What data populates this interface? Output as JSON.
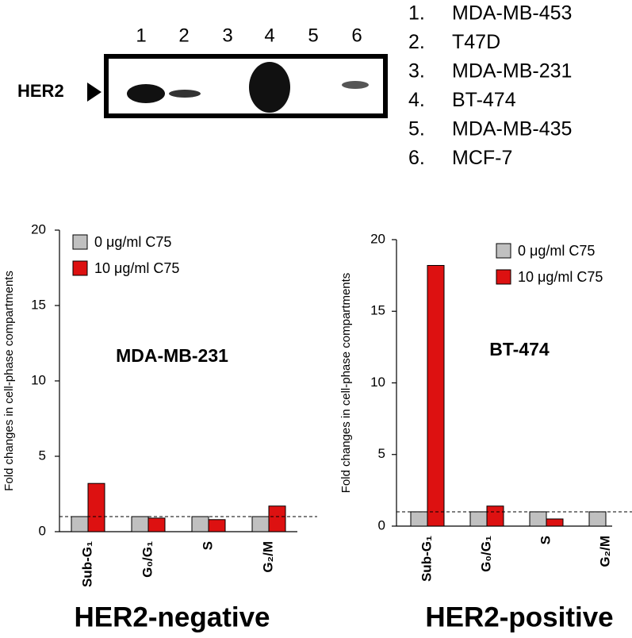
{
  "blot": {
    "lanes": [
      "1",
      "2",
      "3",
      "4",
      "5",
      "6"
    ],
    "marker": "HER2"
  },
  "cell_lines": [
    {
      "number": "1.",
      "name": "MDA-MB-453"
    },
    {
      "number": "2.",
      "name": "T47D"
    },
    {
      "number": "3.",
      "name": "MDA-MB-231"
    },
    {
      "number": "4.",
      "name": "BT-474"
    },
    {
      "number": "5.",
      "name": "MDA-MB-435"
    },
    {
      "number": "6.",
      "name": "MCF-7"
    }
  ],
  "captions": [
    {
      "text": "HER2-negative",
      "color": "#000000"
    },
    {
      "text": "HER2-positive",
      "color": "#e00000"
    }
  ],
  "chart_data": [
    {
      "type": "bar",
      "title": "MDA-MB-231",
      "y_label": "Fold changes in cell-phase compartments",
      "categories": [
        "Sub-G₁",
        "G₀/G₁",
        "S",
        "G₂/M"
      ],
      "series": [
        {
          "name": "0 μg/ml C75",
          "color": "#c0c0c0",
          "values": [
            1,
            1,
            1,
            1
          ]
        },
        {
          "name": "10 μg/ml C75",
          "color": "#dd1111",
          "values": [
            3.2,
            0.9,
            0.8,
            1.7
          ]
        }
      ],
      "reference_line": 1,
      "ylim": [
        0,
        20
      ],
      "yticks": [
        0,
        5,
        10,
        15,
        20
      ]
    },
    {
      "type": "bar",
      "title": "BT-474",
      "y_label": "Fold changes in cell-phase compartments",
      "categories": [
        "Sub-G₁",
        "G₀/G₁",
        "S",
        "G₂/M"
      ],
      "series": [
        {
          "name": "0 μg/ml C75",
          "color": "#c0c0c0",
          "values": [
            1,
            1,
            1,
            1
          ]
        },
        {
          "name": "10 μg/ml C75",
          "color": "#dd1111",
          "values": [
            18.2,
            1.4,
            0.5,
            0
          ]
        }
      ],
      "reference_line": 1,
      "ylim": [
        0,
        20
      ],
      "yticks": [
        0,
        5,
        10,
        15,
        20
      ]
    }
  ]
}
